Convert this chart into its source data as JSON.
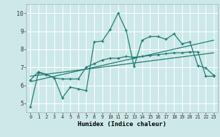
{
  "xlabel": "Humidex (Indice chaleur)",
  "bg_color": "#cce8e8",
  "grid_color": "#ffffff",
  "line_color": "#1a7a6e",
  "xlim": [
    -0.5,
    23.5
  ],
  "ylim": [
    4.5,
    10.5
  ],
  "yticks": [
    5,
    6,
    7,
    8,
    9,
    10
  ],
  "xticks": [
    0,
    1,
    2,
    3,
    4,
    5,
    6,
    7,
    8,
    9,
    10,
    11,
    12,
    13,
    14,
    15,
    16,
    17,
    18,
    19,
    20,
    21,
    22,
    23
  ],
  "line1_x": [
    0,
    1,
    2,
    3,
    4,
    5,
    6,
    7,
    8,
    9,
    10,
    11,
    12,
    13,
    14,
    15,
    16,
    17,
    18,
    19,
    20,
    21,
    22,
    23
  ],
  "line1_y": [
    4.8,
    6.7,
    6.6,
    6.4,
    5.3,
    5.9,
    5.8,
    5.7,
    8.4,
    8.45,
    9.1,
    10.0,
    9.05,
    7.05,
    8.5,
    8.7,
    8.7,
    8.55,
    8.85,
    8.3,
    8.4,
    7.1,
    6.95,
    6.55
  ],
  "line2_x": [
    0,
    1,
    2,
    3,
    4,
    5,
    6,
    7,
    8,
    9,
    10,
    11,
    12,
    13,
    14,
    15,
    16,
    17,
    18,
    19,
    20,
    21,
    22,
    23
  ],
  "line2_y": [
    6.3,
    6.75,
    6.6,
    6.4,
    6.35,
    6.35,
    6.35,
    7.0,
    7.2,
    7.4,
    7.5,
    7.5,
    7.6,
    7.55,
    7.6,
    7.65,
    7.7,
    7.75,
    7.8,
    7.8,
    7.85,
    7.85,
    6.5,
    6.5
  ],
  "line3_x": [
    0,
    23
  ],
  "line3_y": [
    6.2,
    8.5
  ],
  "line4_x": [
    0,
    23
  ],
  "line4_y": [
    6.5,
    7.8
  ]
}
